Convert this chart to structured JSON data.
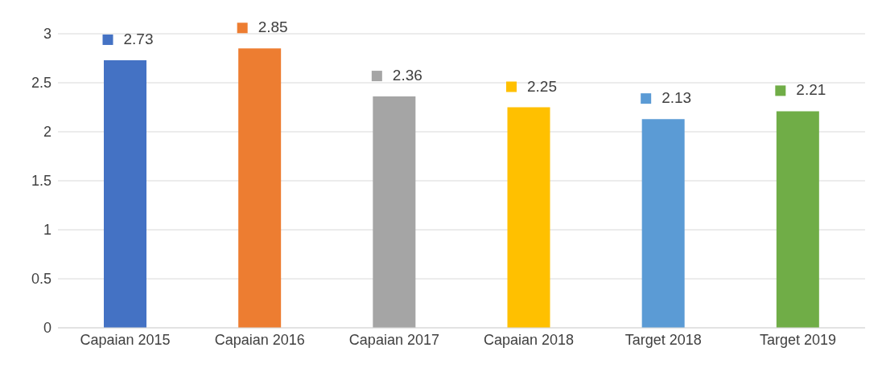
{
  "chart_data": {
    "type": "bar",
    "categories": [
      "Capaian 2015",
      "Capaian 2016",
      "Capaian 2017",
      "Capaian 2018",
      "Target 2018",
      "Target 2019"
    ],
    "values": [
      2.73,
      2.85,
      2.36,
      2.25,
      2.13,
      2.21
    ],
    "colors": [
      "#4472c4",
      "#ed7d31",
      "#a5a5a5",
      "#ffc000",
      "#5b9bd5",
      "#70ad47"
    ],
    "ylim": [
      0,
      3
    ],
    "yticks": [
      0,
      0.5,
      1,
      1.5,
      2,
      2.5,
      3
    ],
    "grid": "y",
    "data_labels": true
  }
}
